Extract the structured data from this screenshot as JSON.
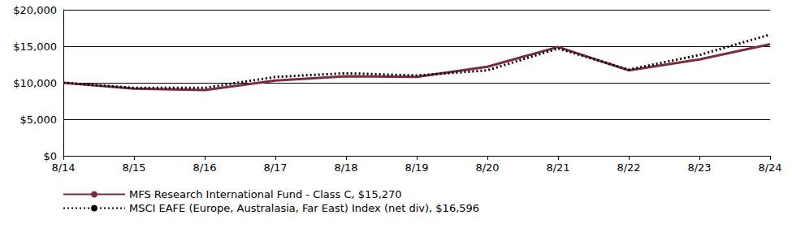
{
  "chart_data": {
    "type": "line",
    "categories": [
      "8/14",
      "8/15",
      "8/16",
      "8/17",
      "8/18",
      "8/19",
      "8/20",
      "8/21",
      "8/22",
      "8/23",
      "8/24"
    ],
    "series": [
      {
        "name": "MFS Research International Fund - Class C, $15,270",
        "color": "#7b2c3f",
        "line_style": "solid",
        "values": [
          10000,
          9200,
          9000,
          10300,
          10900,
          10800,
          12200,
          14900,
          11700,
          13200,
          15270
        ]
      },
      {
        "name": "MSCI EAFE (Europe, Australasia, Far East) Index (net div), $16,596",
        "color": "#000000",
        "line_style": "dotted",
        "values": [
          10000,
          9300,
          9300,
          10800,
          11300,
          11000,
          11700,
          14700,
          11800,
          13800,
          16596
        ]
      }
    ],
    "ylim": [
      0,
      20000
    ],
    "yticks": [
      {
        "value": 0,
        "label": "$0"
      },
      {
        "value": 5000,
        "label": "$5,000"
      },
      {
        "value": 10000,
        "label": "$10,000"
      },
      {
        "value": 15000,
        "label": "$15,000"
      },
      {
        "value": 20000,
        "label": "$20,000"
      }
    ],
    "grid": true,
    "legend": "bottom"
  }
}
